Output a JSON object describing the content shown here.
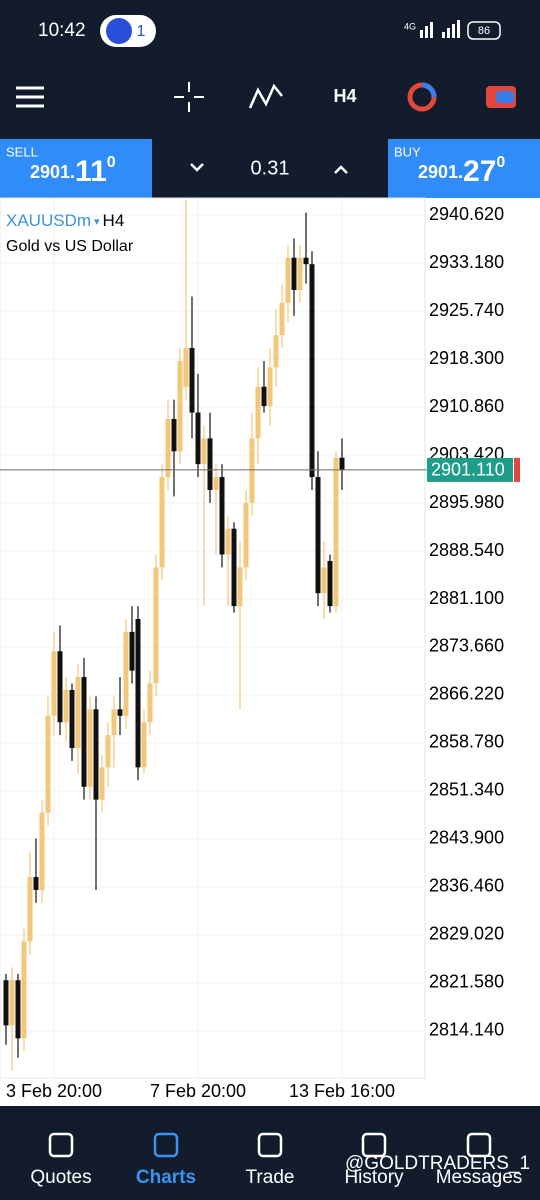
{
  "status_bar": {
    "time": "10:42",
    "badge": "1",
    "network": "4G",
    "battery": "86"
  },
  "toolbar": {
    "timeframe": "H4"
  },
  "trade_bar": {
    "sell": {
      "label": "SELL",
      "price_main": "2901.",
      "price_big": "11",
      "price_sup": "0"
    },
    "spread": "0.31",
    "buy": {
      "label": "BUY",
      "price_main": "2901.",
      "price_big": "27",
      "price_sup": "0"
    }
  },
  "chart_data": {
    "type": "candlestick",
    "symbol": "XAUUSDm",
    "timeframe": "H4",
    "subtitle": "Gold vs US Dollar",
    "categories": [
      null,
      null,
      null,
      null,
      null,
      null,
      null,
      null,
      "3 Feb 20:00",
      null,
      null,
      null,
      null,
      null,
      null,
      null,
      null,
      null,
      null,
      null,
      null,
      null,
      null,
      null,
      null,
      null,
      null,
      null,
      null,
      null,
      null,
      null,
      "7 Feb 20:00",
      null,
      null,
      null,
      null,
      null,
      null,
      null,
      null,
      null,
      null,
      null,
      null,
      null,
      null,
      null,
      null,
      null,
      null,
      null,
      null,
      null,
      null,
      null,
      "13 Feb 16:00"
    ],
    "open": [
      2822,
      2815,
      2822,
      2813,
      2828,
      2838,
      2836,
      2848,
      2863,
      2873,
      2862,
      2867,
      2858,
      2869,
      2852,
      2864,
      2850,
      2855,
      2860,
      2864,
      2863,
      2876,
      2878,
      2855,
      2862,
      2868,
      2886,
      2900,
      2909,
      2904,
      2914,
      2920,
      2910,
      2902,
      2906,
      2898,
      2900,
      2888,
      2892,
      2880,
      2886,
      2896,
      2906,
      2914,
      2911,
      2917,
      2922,
      2927,
      2934,
      2929,
      2934,
      2933,
      2900,
      2882,
      2887,
      2880,
      2903
    ],
    "high": [
      2823,
      2824,
      2823,
      2830,
      2842,
      2844,
      2850,
      2866,
      2876,
      2877,
      2869,
      2868,
      2871,
      2872,
      2866,
      2866,
      2857,
      2862,
      2866,
      2869,
      2878,
      2880,
      2880,
      2864,
      2870,
      2888,
      2902,
      2912,
      2912,
      2920,
      2943,
      2928,
      2916,
      2908,
      2910,
      2902,
      2902,
      2894,
      2893,
      2890,
      2898,
      2910,
      2917,
      2918,
      2920,
      2926,
      2930,
      2936,
      2937,
      2936,
      2941,
      2935,
      2904,
      2890,
      2888,
      2904,
      2906
    ],
    "low": [
      2812,
      2808,
      2810,
      2811,
      2826,
      2834,
      2834,
      2846,
      2860,
      2860,
      2859,
      2856,
      2854,
      2850,
      2850,
      2836,
      2848,
      2852,
      2855,
      2860,
      2861,
      2868,
      2853,
      2854,
      2860,
      2866,
      2884,
      2898,
      2897,
      2902,
      2912,
      2906,
      2900,
      2880,
      2896,
      2888,
      2886,
      2880,
      2879,
      2864,
      2884,
      2894,
      2902,
      2910,
      2908,
      2914,
      2920,
      2924,
      2925,
      2927,
      2930,
      2898,
      2880,
      2878,
      2879,
      2879,
      2898
    ],
    "close": [
      2815,
      2822,
      2813,
      2828,
      2838,
      2836,
      2848,
      2863,
      2873,
      2862,
      2867,
      2858,
      2869,
      2852,
      2864,
      2850,
      2855,
      2860,
      2864,
      2863,
      2876,
      2870,
      2855,
      2862,
      2868,
      2886,
      2900,
      2909,
      2904,
      2918,
      2920,
      2910,
      2902,
      2906,
      2898,
      2900,
      2888,
      2892,
      2880,
      2886,
      2896,
      2906,
      2914,
      2911,
      2917,
      2922,
      2927,
      2934,
      2929,
      2934,
      2933,
      2900,
      2882,
      2886,
      2880,
      2903,
      2901.11
    ],
    "up_color": "#f3c77a",
    "down_color": "#111111",
    "ylim": [
      2806.85,
      2943.26
    ],
    "yticks": [
      {
        "value": 2940.62,
        "label": "2940.620"
      },
      {
        "value": 2933.18,
        "label": "2933.180"
      },
      {
        "value": 2925.74,
        "label": "2925.740"
      },
      {
        "value": 2918.3,
        "label": "2918.300"
      },
      {
        "value": 2910.86,
        "label": "2910.860"
      },
      {
        "value": 2903.42,
        "label": "2903.420"
      },
      {
        "value": 2895.98,
        "label": "2895.980"
      },
      {
        "value": 2888.54,
        "label": "2888.540"
      },
      {
        "value": 2881.1,
        "label": "2881.100"
      },
      {
        "value": 2873.66,
        "label": "2873.660"
      },
      {
        "value": 2866.22,
        "label": "2866.220"
      },
      {
        "value": 2858.78,
        "label": "2858.780"
      },
      {
        "value": 2851.34,
        "label": "2851.340"
      },
      {
        "value": 2843.9,
        "label": "2843.900"
      },
      {
        "value": 2836.46,
        "label": "2836.460"
      },
      {
        "value": 2829.02,
        "label": "2829.020"
      },
      {
        "value": 2821.58,
        "label": "2821.580"
      },
      {
        "value": 2814.14,
        "label": "2814.140"
      }
    ],
    "price_line": {
      "value": 2901.11,
      "label": "2901.110",
      "color": "#1f9d8b"
    },
    "grid": true
  },
  "nav": {
    "items": [
      "Quotes",
      "Charts",
      "Trade",
      "History",
      "Messages"
    ],
    "active": "Charts"
  },
  "watermark": "@GOLDTRADERS_1"
}
